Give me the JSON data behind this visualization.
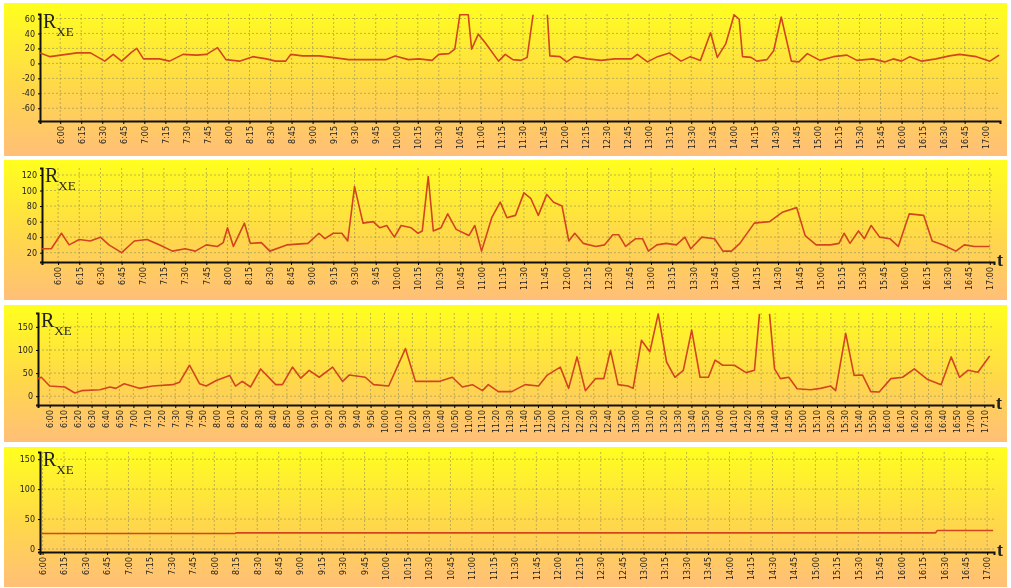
{
  "chart_data": [
    {
      "type": "line",
      "ylabel": "R$_{XE}$",
      "color": "#d2451e",
      "grid": true,
      "xlim": [
        5.76,
        17.17
      ],
      "ylim": [
        -77,
        66
      ],
      "yticks": [
        -60,
        -40,
        -20,
        0,
        20,
        40,
        60
      ],
      "xticks": [
        {
          "value": 6,
          "label": "6:00"
        },
        {
          "value": 6.25,
          "label": "6:15"
        },
        {
          "value": 6.5,
          "label": "6:30"
        },
        {
          "value": 6.75,
          "label": "6:45"
        },
        {
          "value": 7,
          "label": "7:00"
        },
        {
          "value": 7.25,
          "label": "7:15"
        },
        {
          "value": 7.5,
          "label": "7:30"
        },
        {
          "value": 7.75,
          "label": "7:45"
        },
        {
          "value": 8,
          "label": "8:00"
        },
        {
          "value": 8.25,
          "label": "8:15"
        },
        {
          "value": 8.5,
          "label": "8:30"
        },
        {
          "value": 8.75,
          "label": "8:45"
        },
        {
          "value": 9,
          "label": "9:00"
        },
        {
          "value": 9.25,
          "label": "9:15"
        },
        {
          "value": 9.5,
          "label": "9:30"
        },
        {
          "value": 9.75,
          "label": "9:45"
        },
        {
          "value": 10,
          "label": "10:00"
        },
        {
          "value": 10.25,
          "label": "10:15"
        },
        {
          "value": 10.5,
          "label": "10:30"
        },
        {
          "value": 10.75,
          "label": "10:45"
        },
        {
          "value": 11,
          "label": "11:00"
        },
        {
          "value": 11.25,
          "label": "11:15"
        },
        {
          "value": 11.5,
          "label": "11:30"
        },
        {
          "value": 11.75,
          "label": "11:45"
        },
        {
          "value": 12,
          "label": "12:00"
        },
        {
          "value": 12.25,
          "label": "12:15"
        },
        {
          "value": 12.5,
          "label": "12:30"
        },
        {
          "value": 12.75,
          "label": "12:45"
        },
        {
          "value": 13,
          "label": "13:00"
        },
        {
          "value": 13.25,
          "label": "13:15"
        },
        {
          "value": 13.5,
          "label": "13:30"
        },
        {
          "value": 13.75,
          "label": "13:45"
        },
        {
          "value": 14,
          "label": "14:00"
        },
        {
          "value": 14.25,
          "label": "14:15"
        },
        {
          "value": 14.5,
          "label": "14:30"
        },
        {
          "value": 14.75,
          "label": "14:45"
        },
        {
          "value": 15,
          "label": "15:00"
        },
        {
          "value": 15.25,
          "label": "15:15"
        },
        {
          "value": 15.5,
          "label": "15:30"
        },
        {
          "value": 15.75,
          "label": "15:45"
        },
        {
          "value": 16,
          "label": "16:00"
        },
        {
          "value": 16.25,
          "label": "16:15"
        },
        {
          "value": 16.5,
          "label": "16:30"
        },
        {
          "value": 16.75,
          "label": "16:45"
        },
        {
          "value": 17,
          "label": "17:00"
        }
      ],
      "x": [
        5.76,
        5.88,
        6.2,
        6.36,
        6.53,
        6.63,
        6.73,
        6.85,
        6.91,
        6.99,
        7.18,
        7.3,
        7.46,
        7.62,
        7.74,
        7.87,
        7.97,
        8.13,
        8.29,
        8.45,
        8.56,
        8.68,
        8.74,
        8.88,
        9.08,
        9.23,
        9.43,
        9.87,
        9.98,
        10.14,
        10.26,
        10.42,
        10.5,
        10.62,
        10.69,
        10.75,
        10.85,
        10.89,
        10.97,
        11.05,
        11.21,
        11.29,
        11.38,
        11.48,
        11.55,
        11.62,
        11.7,
        11.79,
        11.82,
        11.94,
        12.02,
        12.11,
        12.27,
        12.43,
        12.59,
        12.79,
        12.86,
        12.98,
        13.1,
        13.24,
        13.38,
        13.49,
        13.61,
        13.73,
        13.81,
        13.91,
        14.01,
        14.07,
        14.11,
        14.21,
        14.28,
        14.4,
        14.48,
        14.57,
        14.69,
        14.78,
        14.88,
        15.03,
        15.19,
        15.35,
        15.47,
        15.66,
        15.8,
        15.9,
        16,
        16.1,
        16.24,
        16.41,
        16.57,
        16.69,
        16.89,
        17.05,
        17.16
      ],
      "values": [
        14,
        9,
        14,
        14,
        3,
        12,
        3,
        15,
        20,
        6,
        6,
        3,
        12,
        11,
        12,
        21,
        5,
        3,
        9,
        6,
        3,
        3,
        12,
        10,
        10,
        8,
        5,
        5,
        10,
        5,
        6,
        4,
        12,
        13,
        19,
        65,
        65,
        19,
        39,
        28,
        3,
        12,
        5,
        4,
        8,
        65,
        null,
        65,
        10,
        9,
        2,
        9,
        6,
        4,
        6,
        6,
        12,
        2,
        9,
        14,
        3,
        9,
        4,
        41,
        8,
        26,
        65,
        59,
        9,
        8,
        3,
        5,
        17,
        62,
        3,
        2,
        13,
        4,
        9,
        11,
        4,
        6,
        2,
        6,
        3,
        9,
        3,
        6,
        10,
        12,
        9,
        3,
        11
      ]
    },
    {
      "type": "line",
      "ylabel": "R$_{XE}$",
      "xlabel": "t",
      "color": "#d2451e",
      "grid": true,
      "xlim": [
        5.81,
        17.05
      ],
      "ylim": [
        8,
        129
      ],
      "yticks": [
        20,
        40,
        60,
        80,
        100,
        120
      ],
      "xticks": [
        {
          "value": 6,
          "label": "6:00"
        },
        {
          "value": 6.25,
          "label": "6:15"
        },
        {
          "value": 6.5,
          "label": "6:30"
        },
        {
          "value": 6.75,
          "label": "6:45"
        },
        {
          "value": 7,
          "label": "7:00"
        },
        {
          "value": 7.25,
          "label": "7:15"
        },
        {
          "value": 7.5,
          "label": "7:30"
        },
        {
          "value": 7.75,
          "label": "7:45"
        },
        {
          "value": 8,
          "label": "8:00"
        },
        {
          "value": 8.25,
          "label": "8:15"
        },
        {
          "value": 8.5,
          "label": "8:30"
        },
        {
          "value": 8.75,
          "label": "8:45"
        },
        {
          "value": 9,
          "label": "9:00"
        },
        {
          "value": 9.25,
          "label": "9:15"
        },
        {
          "value": 9.5,
          "label": "9:30"
        },
        {
          "value": 9.75,
          "label": "9:45"
        },
        {
          "value": 10,
          "label": "10:00"
        },
        {
          "value": 10.25,
          "label": "10:15"
        },
        {
          "value": 10.5,
          "label": "10:30"
        },
        {
          "value": 10.75,
          "label": "10:45"
        },
        {
          "value": 11,
          "label": "11:00"
        },
        {
          "value": 11.25,
          "label": "11:15"
        },
        {
          "value": 11.5,
          "label": "11:30"
        },
        {
          "value": 11.75,
          "label": "11:45"
        },
        {
          "value": 12,
          "label": "12:00"
        },
        {
          "value": 12.25,
          "label": "12:15"
        },
        {
          "value": 12.5,
          "label": "12:30"
        },
        {
          "value": 12.75,
          "label": "12:45"
        },
        {
          "value": 13,
          "label": "13:00"
        },
        {
          "value": 13.25,
          "label": "13:15"
        },
        {
          "value": 13.5,
          "label": "13:30"
        },
        {
          "value": 13.75,
          "label": "13:45"
        },
        {
          "value": 14,
          "label": "14:00"
        },
        {
          "value": 14.25,
          "label": "14:15"
        },
        {
          "value": 14.5,
          "label": "14:30"
        },
        {
          "value": 14.75,
          "label": "14:45"
        },
        {
          "value": 15,
          "label": "15:00"
        },
        {
          "value": 15.25,
          "label": "15:15"
        },
        {
          "value": 15.5,
          "label": "15:30"
        },
        {
          "value": 15.75,
          "label": "15:45"
        },
        {
          "value": 16,
          "label": "16:00"
        },
        {
          "value": 16.25,
          "label": "16:15"
        },
        {
          "value": 16.5,
          "label": "16:30"
        },
        {
          "value": 16.75,
          "label": "16:45"
        },
        {
          "value": 17,
          "label": "17:00"
        }
      ],
      "x": [
        5.81,
        5.92,
        6.04,
        6.13,
        6.25,
        6.38,
        6.5,
        6.6,
        6.75,
        6.9,
        7.05,
        7.2,
        7.35,
        7.5,
        7.62,
        7.75,
        7.88,
        7.95,
        8,
        8.07,
        8.2,
        8.27,
        8.4,
        8.5,
        8.7,
        8.95,
        9.08,
        9.15,
        9.25,
        9.35,
        9.42,
        9.5,
        9.6,
        9.72,
        9.8,
        9.88,
        9.97,
        10.05,
        10.17,
        10.25,
        10.3,
        10.37,
        10.43,
        10.52,
        10.6,
        10.7,
        10.85,
        10.92,
        11,
        11.12,
        11.22,
        11.3,
        11.4,
        11.5,
        11.58,
        11.67,
        11.77,
        11.85,
        11.95,
        12.03,
        12.1,
        12.2,
        12.35,
        12.45,
        12.55,
        12.62,
        12.7,
        12.82,
        12.9,
        12.97,
        13.07,
        13.18,
        13.3,
        13.4,
        13.47,
        13.6,
        13.75,
        13.85,
        13.95,
        14.05,
        14.22,
        14.4,
        14.55,
        14.72,
        14.82,
        14.95,
        15.12,
        15.22,
        15.28,
        15.35,
        15.45,
        15.52,
        15.6,
        15.7,
        15.82,
        15.92,
        16.05,
        16.22,
        16.32,
        16.45,
        16.6,
        16.7,
        16.82,
        17
      ],
      "values": [
        25,
        25,
        45,
        30,
        37,
        35,
        40,
        30,
        20,
        35,
        37,
        30,
        22,
        25,
        22,
        30,
        28,
        33,
        52,
        28,
        58,
        32,
        33,
        22,
        30,
        32,
        45,
        38,
        45,
        45,
        35,
        105,
        58,
        60,
        52,
        55,
        40,
        55,
        52,
        45,
        48,
        118,
        48,
        52,
        70,
        50,
        42,
        55,
        22,
        65,
        85,
        65,
        68,
        97,
        90,
        68,
        95,
        85,
        80,
        35,
        45,
        32,
        28,
        30,
        43,
        43,
        28,
        38,
        38,
        22,
        30,
        32,
        30,
        40,
        25,
        40,
        38,
        22,
        22,
        32,
        58,
        60,
        72,
        78,
        42,
        30,
        30,
        32,
        45,
        32,
        48,
        38,
        55,
        40,
        38,
        28,
        70,
        68,
        35,
        30,
        22,
        30,
        28,
        28
      ]
    },
    {
      "type": "line",
      "ylabel": "R$_{XE}$",
      "xlabel": "t",
      "color": "#d2451e",
      "grid": true,
      "xlim": [
        5.86,
        17.27
      ],
      "ylim": [
        -19,
        180
      ],
      "yticks": [
        0,
        50,
        100,
        150
      ],
      "xticks": [
        {
          "value": 6,
          "label": "6:00"
        },
        {
          "value": 6.1667,
          "label": "6:10"
        },
        {
          "value": 6.3333,
          "label": "6:20"
        },
        {
          "value": 6.5,
          "label": "6:30"
        },
        {
          "value": 6.6667,
          "label": "6:40"
        },
        {
          "value": 6.8333,
          "label": "6:50"
        },
        {
          "value": 7,
          "label": "7:00"
        },
        {
          "value": 7.1667,
          "label": "7:10"
        },
        {
          "value": 7.3333,
          "label": "7:20"
        },
        {
          "value": 7.5,
          "label": "7:30"
        },
        {
          "value": 7.6667,
          "label": "7:40"
        },
        {
          "value": 7.8333,
          "label": "7:50"
        },
        {
          "value": 8,
          "label": "8:00"
        },
        {
          "value": 8.1667,
          "label": "8:10"
        },
        {
          "value": 8.3333,
          "label": "8:20"
        },
        {
          "value": 8.5,
          "label": "8:30"
        },
        {
          "value": 8.6667,
          "label": "8:40"
        },
        {
          "value": 8.8333,
          "label": "8:50"
        },
        {
          "value": 9,
          "label": "9:00"
        },
        {
          "value": 9.1667,
          "label": "9:10"
        },
        {
          "value": 9.3333,
          "label": "9:20"
        },
        {
          "value": 9.5,
          "label": "9:30"
        },
        {
          "value": 9.6667,
          "label": "9:40"
        },
        {
          "value": 9.8333,
          "label": "9:50"
        },
        {
          "value": 10,
          "label": "10:00"
        },
        {
          "value": 10.1667,
          "label": "10:10"
        },
        {
          "value": 10.3333,
          "label": "10:20"
        },
        {
          "value": 10.5,
          "label": "10:30"
        },
        {
          "value": 10.6667,
          "label": "10:40"
        },
        {
          "value": 10.8333,
          "label": "10:50"
        },
        {
          "value": 11,
          "label": "11:00"
        },
        {
          "value": 11.1667,
          "label": "11:10"
        },
        {
          "value": 11.3333,
          "label": "11:20"
        },
        {
          "value": 11.5,
          "label": "11:30"
        },
        {
          "value": 11.6667,
          "label": "11:40"
        },
        {
          "value": 11.8333,
          "label": "11:50"
        },
        {
          "value": 12,
          "label": "12:00"
        },
        {
          "value": 12.1667,
          "label": "12:10"
        },
        {
          "value": 12.3333,
          "label": "12:20"
        },
        {
          "value": 12.5,
          "label": "12:30"
        },
        {
          "value": 12.6667,
          "label": "12:40"
        },
        {
          "value": 12.8333,
          "label": "12:50"
        },
        {
          "value": 13,
          "label": "13:00"
        },
        {
          "value": 13.1667,
          "label": "13:10"
        },
        {
          "value": 13.3333,
          "label": "13:20"
        },
        {
          "value": 13.5,
          "label": "13:30"
        },
        {
          "value": 13.6667,
          "label": "13:40"
        },
        {
          "value": 13.8333,
          "label": "13:50"
        },
        {
          "value": 14,
          "label": "14:00"
        },
        {
          "value": 14.1667,
          "label": "14:10"
        },
        {
          "value": 14.3333,
          "label": "14:20"
        },
        {
          "value": 14.5,
          "label": "14:30"
        },
        {
          "value": 14.6667,
          "label": "14:40"
        },
        {
          "value": 14.8333,
          "label": "14:50"
        },
        {
          "value": 15,
          "label": "15:00"
        },
        {
          "value": 15.1667,
          "label": "15:10"
        },
        {
          "value": 15.3333,
          "label": "15:20"
        },
        {
          "value": 15.5,
          "label": "15:30"
        },
        {
          "value": 15.6667,
          "label": "15:40"
        },
        {
          "value": 15.8333,
          "label": "15:50"
        },
        {
          "value": 16,
          "label": "16:00"
        },
        {
          "value": 16.1667,
          "label": "16:10"
        },
        {
          "value": 16.3333,
          "label": "16:20"
        },
        {
          "value": 16.5,
          "label": "16:30"
        },
        {
          "value": 16.6667,
          "label": "16:40"
        },
        {
          "value": 16.8333,
          "label": "16:50"
        },
        {
          "value": 17,
          "label": "17:00"
        },
        {
          "value": 17.1667,
          "label": "17:10"
        }
      ],
      "x": [
        5.86,
        5.9,
        6,
        6.18,
        6.3,
        6.38,
        6.6,
        6.72,
        6.79,
        6.89,
        7.07,
        7.23,
        7.47,
        7.55,
        7.67,
        7.79,
        7.87,
        7.99,
        8.15,
        8.22,
        8.3,
        8.4,
        8.52,
        8.7,
        8.78,
        8.9,
        9,
        9.1,
        9.22,
        9.38,
        9.5,
        9.58,
        9.77,
        9.87,
        10.05,
        10.25,
        10.37,
        10.65,
        10.81,
        10.93,
        11.05,
        11.17,
        11.24,
        11.36,
        11.52,
        11.68,
        11.84,
        11.94,
        12.1,
        12.2,
        12.3,
        12.4,
        12.52,
        12.62,
        12.7,
        12.79,
        12.91,
        12.97,
        13.07,
        13.17,
        13.27,
        13.37,
        13.47,
        13.57,
        13.67,
        13.77,
        13.87,
        13.95,
        14.04,
        14.18,
        14.32,
        14.42,
        14.48,
        14.54,
        14.6,
        14.66,
        14.73,
        14.83,
        14.93,
        15.09,
        15.21,
        15.33,
        15.39,
        15.51,
        15.61,
        15.71,
        15.81,
        15.91,
        16.05,
        16.19,
        16.33,
        16.49,
        16.65,
        16.77,
        16.87,
        16.97,
        17.09,
        17.23
      ],
      "values": [
        38,
        41,
        22,
        20,
        7,
        12,
        14,
        20,
        17,
        27,
        17,
        22,
        25,
        30,
        67,
        27,
        22,
        34,
        45,
        22,
        32,
        20,
        59,
        25,
        25,
        63,
        39,
        56,
        41,
        63,
        32,
        46,
        41,
        25,
        22,
        103,
        32,
        32,
        41,
        20,
        25,
        12,
        25,
        10,
        10,
        25,
        22,
        45,
        63,
        17,
        85,
        12,
        38,
        38,
        99,
        25,
        22,
        17,
        121,
        96,
        178,
        74,
        41,
        56,
        143,
        41,
        41,
        78,
        67,
        67,
        51,
        56,
        178,
        null,
        178,
        59,
        38,
        41,
        16,
        14,
        17,
        22,
        12,
        136,
        45,
        46,
        10,
        9,
        38,
        41,
        59,
        36,
        25,
        85,
        41,
        56,
        52,
        87
      ]
    },
    {
      "type": "line",
      "ylabel": "R$_{XE}$",
      "xlabel": "t",
      "color": "#d2451e",
      "grid": true,
      "xlim": [
        5.97,
        17.08
      ],
      "ylim": [
        -5,
        162
      ],
      "yticks": [
        0,
        50,
        100,
        150
      ],
      "xticks": [
        {
          "value": 6,
          "label": "6:00"
        },
        {
          "value": 6.25,
          "label": "6:15"
        },
        {
          "value": 6.5,
          "label": "6:30"
        },
        {
          "value": 6.75,
          "label": "6:45"
        },
        {
          "value": 7,
          "label": "7:00"
        },
        {
          "value": 7.25,
          "label": "7:15"
        },
        {
          "value": 7.5,
          "label": "7:30"
        },
        {
          "value": 7.75,
          "label": "7:45"
        },
        {
          "value": 8,
          "label": "8:00"
        },
        {
          "value": 8.25,
          "label": "8:15"
        },
        {
          "value": 8.5,
          "label": "8:30"
        },
        {
          "value": 8.75,
          "label": "8:45"
        },
        {
          "value": 9,
          "label": "9:00"
        },
        {
          "value": 9.25,
          "label": "9:15"
        },
        {
          "value": 9.5,
          "label": "9:30"
        },
        {
          "value": 9.75,
          "label": "9:45"
        },
        {
          "value": 10,
          "label": "10:00"
        },
        {
          "value": 10.25,
          "label": "10:15"
        },
        {
          "value": 10.5,
          "label": "10:30"
        },
        {
          "value": 10.75,
          "label": "10:45"
        },
        {
          "value": 11,
          "label": "11:00"
        },
        {
          "value": 11.25,
          "label": "11:15"
        },
        {
          "value": 11.5,
          "label": "11:30"
        },
        {
          "value": 11.75,
          "label": "11:45"
        },
        {
          "value": 12,
          "label": "12:00"
        },
        {
          "value": 12.25,
          "label": "12:15"
        },
        {
          "value": 12.5,
          "label": "12:30"
        },
        {
          "value": 12.75,
          "label": "12:45"
        },
        {
          "value": 13,
          "label": "13:00"
        },
        {
          "value": 13.25,
          "label": "13:15"
        },
        {
          "value": 13.5,
          "label": "13:30"
        },
        {
          "value": 13.75,
          "label": "13:45"
        },
        {
          "value": 14,
          "label": "14:00"
        },
        {
          "value": 14.25,
          "label": "14:15"
        },
        {
          "value": 14.5,
          "label": "14:30"
        },
        {
          "value": 14.75,
          "label": "14:45"
        },
        {
          "value": 15,
          "label": "15:00"
        },
        {
          "value": 15.25,
          "label": "15:15"
        },
        {
          "value": 15.5,
          "label": "15:30"
        },
        {
          "value": 15.75,
          "label": "15:45"
        },
        {
          "value": 16,
          "label": "16:00"
        },
        {
          "value": 16.25,
          "label": "16:15"
        },
        {
          "value": 16.5,
          "label": "16:30"
        },
        {
          "value": 16.75,
          "label": "16:45"
        },
        {
          "value": 17,
          "label": "17:00"
        }
      ],
      "x": [
        5.98,
        8.24,
        8.26,
        16.4,
        16.42,
        17.07
      ],
      "values": [
        26,
        26,
        27,
        27,
        31,
        31
      ]
    }
  ]
}
